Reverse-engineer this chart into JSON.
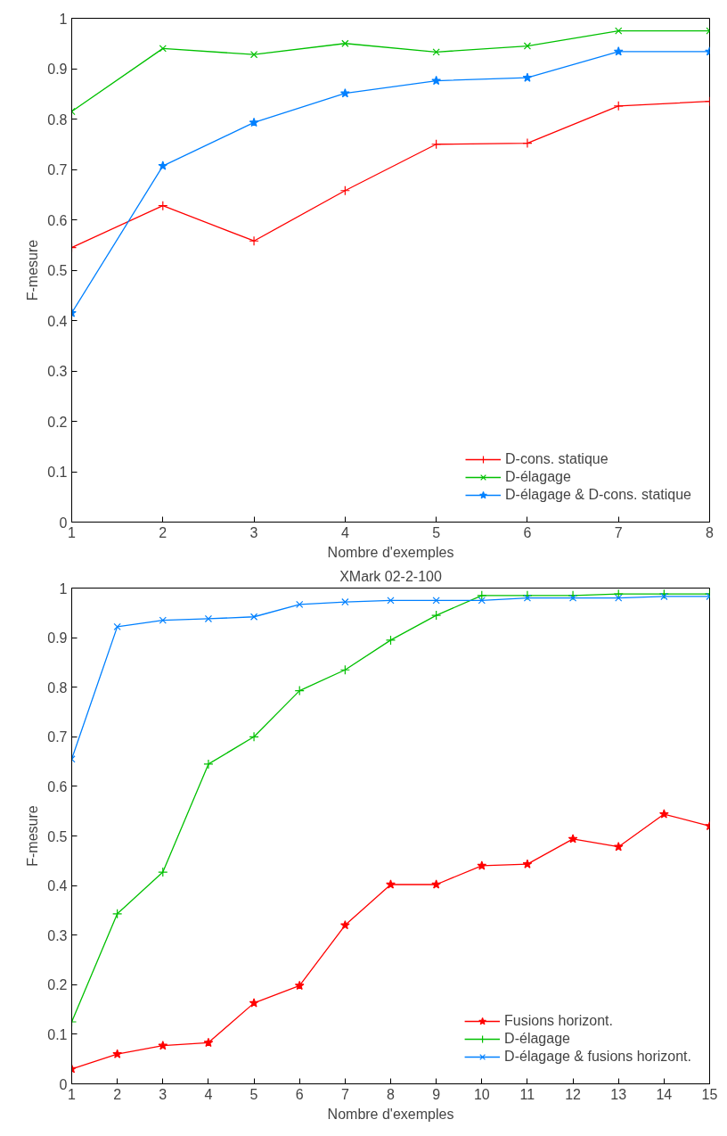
{
  "chart_data": [
    {
      "type": "line",
      "xlabel": "Nombre d'exemples",
      "ylabel": "F-mesure",
      "x": [
        1,
        2,
        3,
        4,
        5,
        6,
        7,
        8
      ],
      "xlim": [
        1,
        8
      ],
      "xticks": [
        1,
        2,
        3,
        4,
        5,
        6,
        7,
        8
      ],
      "ylim": [
        0,
        1
      ],
      "yticks": [
        0,
        0.1,
        0.2,
        0.3,
        0.4,
        0.5,
        0.6,
        0.7,
        0.8,
        0.9,
        1
      ],
      "legend": "bottom right",
      "grid": false,
      "series": [
        {
          "name": "D-cons. statique",
          "color": "#ff0000",
          "marker": "cross",
          "values": [
            0.545,
            0.628,
            0.558,
            0.658,
            0.75,
            0.752,
            0.826,
            0.835
          ]
        },
        {
          "name": "D-élagage",
          "color": "#00c000",
          "marker": "x",
          "values": [
            0.815,
            0.94,
            0.928,
            0.95,
            0.933,
            0.945,
            0.975,
            0.975
          ]
        },
        {
          "name": "D-élagage & D-cons. statique",
          "color": "#0080ff",
          "marker": "star",
          "values": [
            0.415,
            0.707,
            0.793,
            0.851,
            0.876,
            0.882,
            0.934,
            0.934
          ]
        }
      ]
    },
    {
      "type": "line",
      "title": "XMark 02-2-100",
      "xlabel": "Nombre d'exemples",
      "ylabel": "F-mesure",
      "x": [
        1,
        2,
        3,
        4,
        5,
        6,
        7,
        8,
        9,
        10,
        11,
        12,
        13,
        14,
        15
      ],
      "xlim": [
        1,
        15
      ],
      "xticks": [
        1,
        2,
        3,
        4,
        5,
        6,
        7,
        8,
        9,
        10,
        11,
        12,
        13,
        14,
        15
      ],
      "ylim": [
        0,
        1
      ],
      "yticks": [
        0,
        0.1,
        0.2,
        0.3,
        0.4,
        0.5,
        0.6,
        0.7,
        0.8,
        0.9,
        1
      ],
      "legend": "bottom right",
      "grid": false,
      "series": [
        {
          "name": "Fusions horizont.",
          "color": "#ff0000",
          "marker": "star",
          "values": [
            0.03,
            0.06,
            0.077,
            0.083,
            0.163,
            0.198,
            0.32,
            0.402,
            0.402,
            0.44,
            0.443,
            0.494,
            0.478,
            0.544,
            0.52
          ]
        },
        {
          "name": "D-élagage",
          "color": "#00c000",
          "marker": "cross",
          "values": [
            0.125,
            0.343,
            0.427,
            0.645,
            0.7,
            0.793,
            0.835,
            0.895,
            0.945,
            0.985,
            0.985,
            0.985,
            0.988,
            0.988,
            0.988
          ]
        },
        {
          "name": "D-élagage & fusions horizont.",
          "color": "#0080ff",
          "marker": "x",
          "values": [
            0.655,
            0.922,
            0.935,
            0.938,
            0.942,
            0.967,
            0.972,
            0.975,
            0.975,
            0.975,
            0.98,
            0.98,
            0.98,
            0.983,
            0.983
          ]
        }
      ]
    }
  ]
}
